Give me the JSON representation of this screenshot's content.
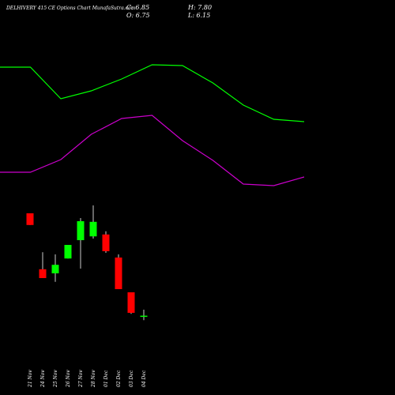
{
  "chart_data": [
    {
      "type": "line",
      "ylim": [
        -5.7,
        56.8
      ],
      "series": [
        {
          "color": "#00ff00",
          "values": [
            46.175,
            46.175,
            41.175,
            42.425,
            44.3,
            46.55,
            46.425,
            43.675,
            40.175,
            37.925,
            37.55
          ]
        },
        {
          "color": "#cc00cc",
          "values": [
            29.55,
            29.55,
            31.55,
            35.55,
            38.05,
            38.55,
            34.55,
            31.425,
            27.675,
            27.425,
            28.8
          ]
        }
      ]
    },
    {
      "type": "candlestick",
      "title": "DELHIVERY 415 CE Options Chart MunafaSutra.com",
      "ohlc_labels": [
        "C: 6.85",
        "O: 6.75",
        "H: 7.80",
        "L: 6.15"
      ],
      "ylim": [
        -5.7,
        56.8
      ],
      "up_color": "#00ff00",
      "down_color": "#ff0000",
      "categories": [
        "21 Nov",
        "24 Nov",
        "25 Nov",
        "26 Nov",
        "27 Nov",
        "28 Nov",
        "01 Dec",
        "02 Dec",
        "03 Dec",
        "04 Dec"
      ],
      "open": [
        23.05,
        14.2,
        13.55,
        15.9,
        18.8,
        19.4,
        19.7,
        16.05,
        10.55,
        6.75
      ],
      "high": [
        23.05,
        16.9,
        16.55,
        18.05,
        22.3,
        24.3,
        20.2,
        16.55,
        10.55,
        7.8
      ],
      "low": [
        21.2,
        12.8,
        12.2,
        15.9,
        14.3,
        19.05,
        16.8,
        11.05,
        7.15,
        6.15
      ],
      "close": [
        21.2,
        12.8,
        14.9,
        18.05,
        21.8,
        21.7,
        17.05,
        11.05,
        7.3,
        6.85
      ]
    }
  ]
}
